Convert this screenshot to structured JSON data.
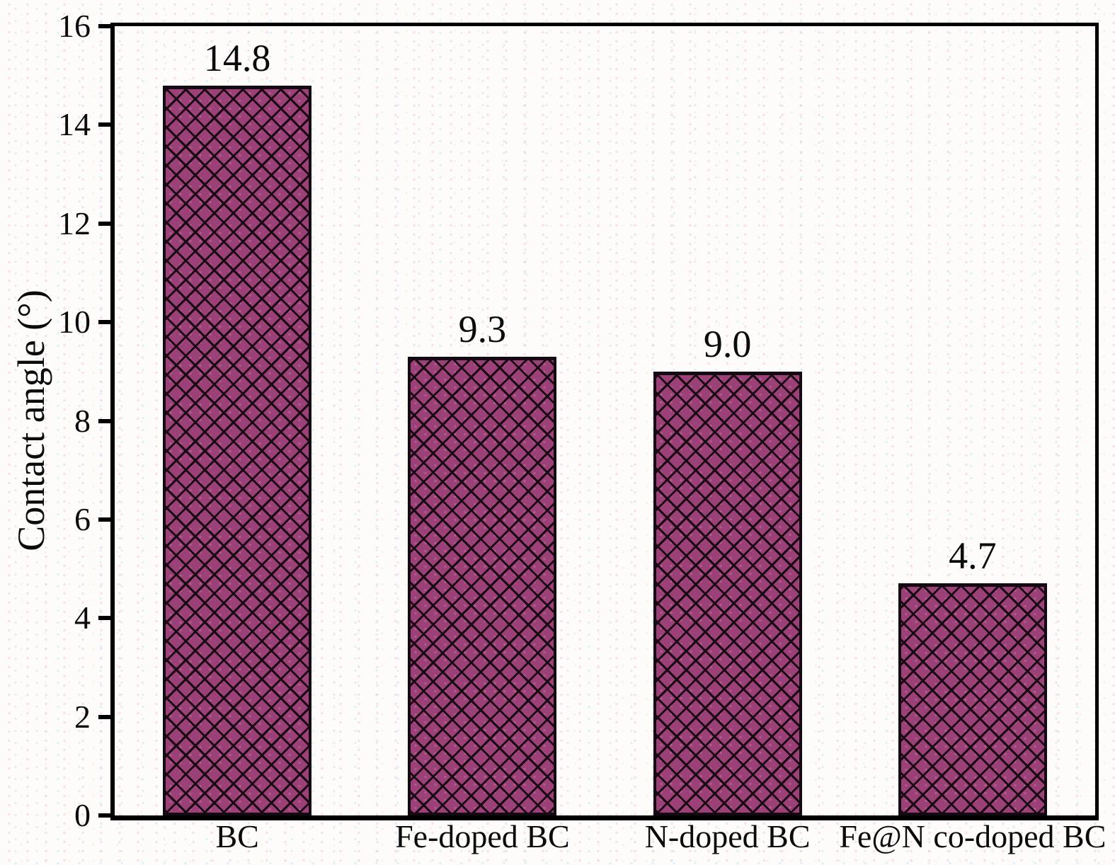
{
  "chart_data": {
    "type": "bar",
    "title": "",
    "categories": [
      "BC",
      "Fe-doped BC",
      "N-doped BC",
      "Fe@N co-doped BC"
    ],
    "values": [
      14.8,
      9.3,
      9.0,
      4.7
    ],
    "value_labels": [
      "14.8",
      "9.3",
      "9.0",
      "4.7"
    ],
    "xlabel": "",
    "ylabel": "Contact angle (°)",
    "ylim": [
      0,
      16
    ],
    "yticks": [
      0,
      2,
      4,
      6,
      8,
      10,
      12,
      14,
      16
    ],
    "grid": false,
    "legend": "none",
    "bar_fill_color": "#9c4078",
    "bar_hatch": "diagonal-crosshatch",
    "hatch_color": "#1a0a14",
    "frame_color": "#000000",
    "background_color": "#fdfcfb"
  }
}
